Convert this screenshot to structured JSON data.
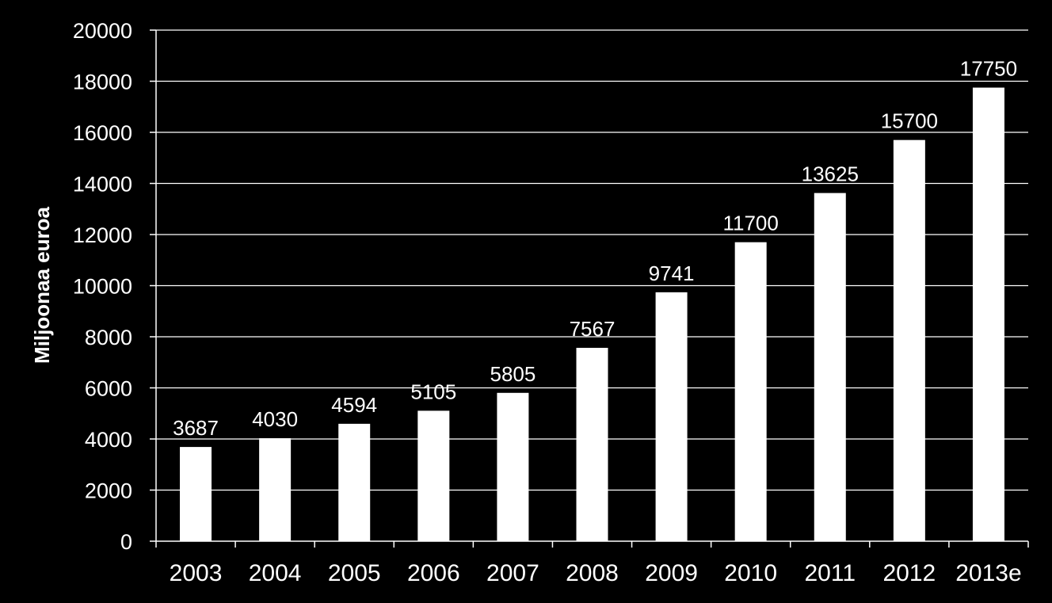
{
  "chart_data": {
    "type": "bar",
    "title": "",
    "xlabel": "",
    "ylabel": "Miljoonaa euroa",
    "categories": [
      "2003",
      "2004",
      "2005",
      "2006",
      "2007",
      "2008",
      "2009",
      "2010",
      "2011",
      "2012",
      "2013e"
    ],
    "values": [
      3687,
      4030,
      4594,
      5105,
      5805,
      7567,
      9741,
      11700,
      13625,
      15700,
      17750
    ],
    "data_labels": [
      "3687",
      "4030",
      "4594",
      "5105",
      "5805",
      "7567",
      "9741",
      "11700",
      "13625",
      "15700",
      "17750"
    ],
    "ylim": [
      0,
      20000
    ],
    "yticks": [
      0,
      2000,
      4000,
      6000,
      8000,
      10000,
      12000,
      14000,
      16000,
      18000,
      20000
    ],
    "ytick_labels": [
      "0",
      "2000",
      "4000",
      "6000",
      "8000",
      "10000",
      "12000",
      "14000",
      "16000",
      "18000",
      "20000"
    ],
    "grid": true,
    "legend": "none",
    "colors": {
      "background": "#000000",
      "bar": "#ffffff",
      "grid": "#ffffff",
      "text": "#ffffff"
    }
  }
}
